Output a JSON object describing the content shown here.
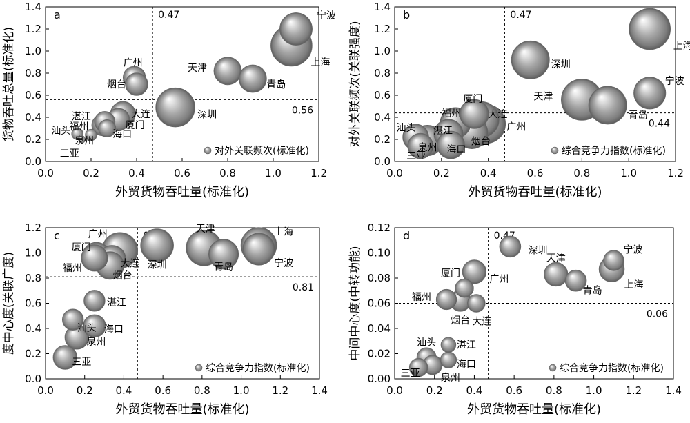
{
  "chart_data": [
    {
      "type": "scatter",
      "panel_label": "a",
      "xlabel": "外贸货物吞吐量(标准化)",
      "ylabel": "货物吞吐总量(标准化)",
      "legend": "对外关联频次(标准化)",
      "legend_position": "bottom-right",
      "xlim": [
        0,
        1.2
      ],
      "ylim": [
        0,
        1.4
      ],
      "xticks": [
        "0.0",
        "0.2",
        "0.4",
        "0.6",
        "0.8",
        "1.0",
        "1.2"
      ],
      "yticks": [
        "0.0",
        "0.2",
        "0.4",
        "0.6",
        "0.8",
        "1.0",
        "1.2",
        "1.4"
      ],
      "vline": {
        "value": 0.47,
        "label": "0.47"
      },
      "hline": {
        "value": 0.56,
        "label": "0.56"
      },
      "points": [
        {
          "name": "宁波",
          "x": 1.1,
          "y": 1.2,
          "size": 0.62
        },
        {
          "name": "上海",
          "x": 1.08,
          "y": 1.05,
          "size": 1.0
        },
        {
          "name": "天津",
          "x": 0.8,
          "y": 0.82,
          "size": 0.45
        },
        {
          "name": "青岛",
          "x": 0.91,
          "y": 0.75,
          "size": 0.45
        },
        {
          "name": "深圳",
          "x": 0.57,
          "y": 0.49,
          "size": 0.9
        },
        {
          "name": "广州",
          "x": 0.39,
          "y": 0.76,
          "size": 0.3
        },
        {
          "name": "烟台",
          "x": 0.4,
          "y": 0.7,
          "size": 0.3
        },
        {
          "name": "大连",
          "x": 0.34,
          "y": 0.43,
          "size": 0.37
        },
        {
          "name": "厦门",
          "x": 0.32,
          "y": 0.38,
          "size": 0.3
        },
        {
          "name": "湛江",
          "x": 0.26,
          "y": 0.36,
          "size": 0.25
        },
        {
          "name": "福州",
          "x": 0.25,
          "y": 0.33,
          "size": 0.27
        },
        {
          "name": "海口",
          "x": 0.27,
          "y": 0.3,
          "size": 0.18
        },
        {
          "name": "泉州",
          "x": 0.2,
          "y": 0.24,
          "size": 0.08
        },
        {
          "name": "汕头",
          "x": 0.14,
          "y": 0.25,
          "size": 0.08
        },
        {
          "name": "三亚",
          "x": 0.16,
          "y": 0.2,
          "size": 0.03
        }
      ]
    },
    {
      "type": "scatter",
      "panel_label": "b",
      "xlabel": "外贸货物吞吐量(标准化)",
      "ylabel": "对外关联频次(关联强度)",
      "legend": "综合竞争力指数(标准化)",
      "legend_position": "bottom-right",
      "xlim": [
        0,
        1.2
      ],
      "ylim": [
        0,
        1.4
      ],
      "xticks": [
        "0.0",
        "0.2",
        "0.4",
        "0.6",
        "0.8",
        "1.0",
        "1.2"
      ],
      "yticks": [
        "0.0",
        "0.2",
        "0.4",
        "0.6",
        "0.8",
        "1.0",
        "1.2",
        "1.4"
      ],
      "vline": {
        "value": 0.47,
        "label": "0.47"
      },
      "hline": {
        "value": 0.44,
        "label": "0.44"
      },
      "points": [
        {
          "name": "上海",
          "x": 1.09,
          "y": 1.2,
          "size": 1.0
        },
        {
          "name": "深圳",
          "x": 0.58,
          "y": 0.92,
          "size": 0.85
        },
        {
          "name": "天津",
          "x": 0.8,
          "y": 0.56,
          "size": 1.0
        },
        {
          "name": "青岛",
          "x": 0.91,
          "y": 0.51,
          "size": 0.85
        },
        {
          "name": "宁波",
          "x": 1.09,
          "y": 0.62,
          "size": 0.6
        },
        {
          "name": "厦门",
          "x": 0.34,
          "y": 0.43,
          "size": 0.5
        },
        {
          "name": "大连",
          "x": 0.37,
          "y": 0.38,
          "size": 0.75
        },
        {
          "name": "广州",
          "x": 0.39,
          "y": 0.34,
          "size": 0.9
        },
        {
          "name": "福州",
          "x": 0.26,
          "y": 0.35,
          "size": 0.55
        },
        {
          "name": "烟台",
          "x": 0.33,
          "y": 0.26,
          "size": 0.6
        },
        {
          "name": "湛江",
          "x": 0.23,
          "y": 0.25,
          "size": 0.5
        },
        {
          "name": "海口",
          "x": 0.24,
          "y": 0.15,
          "size": 0.45
        },
        {
          "name": "泉州",
          "x": 0.14,
          "y": 0.19,
          "size": 0.55
        },
        {
          "name": "汕头",
          "x": 0.09,
          "y": 0.22,
          "size": 0.4
        },
        {
          "name": "三亚",
          "x": 0.11,
          "y": 0.14,
          "size": 0.38
        }
      ]
    },
    {
      "type": "scatter",
      "panel_label": "c",
      "xlabel": "外贸货物吞吐量(标准化)",
      "ylabel": "度中心度(关联广度)",
      "legend": "综合竞争力指数(标准化)",
      "legend_position": "bottom-right",
      "xlim": [
        0,
        1.4
      ],
      "ylim": [
        0,
        1.2
      ],
      "xticks": [
        "0.0",
        "0.2",
        "0.4",
        "0.6",
        "0.8",
        "1.0",
        "1.2",
        "1.4"
      ],
      "yticks": [
        "0.0",
        "0.2",
        "0.4",
        "0.6",
        "0.8",
        "1.0",
        "1.2"
      ],
      "vline": {
        "value": 0.47,
        "label": "0.47"
      },
      "hline": {
        "value": 0.81,
        "label": "0.81"
      },
      "points": [
        {
          "name": "广州",
          "x": 0.38,
          "y": 1.02,
          "size": 1.0
        },
        {
          "name": "深圳",
          "x": 0.57,
          "y": 1.06,
          "size": 0.85
        },
        {
          "name": "天津",
          "x": 0.81,
          "y": 1.04,
          "size": 1.0
        },
        {
          "name": "青岛",
          "x": 0.91,
          "y": 0.99,
          "size": 0.7
        },
        {
          "name": "上海",
          "x": 1.09,
          "y": 1.06,
          "size": 1.0
        },
        {
          "name": "宁波",
          "x": 1.09,
          "y": 1.03,
          "size": 0.8
        },
        {
          "name": "厦门",
          "x": 0.26,
          "y": 0.97,
          "size": 0.65
        },
        {
          "name": "福州",
          "x": 0.25,
          "y": 0.96,
          "size": 0.55
        },
        {
          "name": "大连",
          "x": 0.34,
          "y": 0.95,
          "size": 0.6
        },
        {
          "name": "烟台",
          "x": 0.33,
          "y": 0.9,
          "size": 0.6
        },
        {
          "name": "湛江",
          "x": 0.25,
          "y": 0.62,
          "size": 0.35
        },
        {
          "name": "汕头",
          "x": 0.14,
          "y": 0.47,
          "size": 0.35
        },
        {
          "name": "海口",
          "x": 0.25,
          "y": 0.42,
          "size": 0.4
        },
        {
          "name": "泉州",
          "x": 0.16,
          "y": 0.33,
          "size": 0.45
        },
        {
          "name": "三亚",
          "x": 0.1,
          "y": 0.17,
          "size": 0.45
        }
      ]
    },
    {
      "type": "scatter",
      "panel_label": "d",
      "xlabel": "外贸货物吞吐量(标准化)",
      "ylabel": "中间中心度(中转功能)",
      "legend": "综合竞争力指数(标准化)",
      "legend_position": "bottom-right",
      "xlim": [
        0,
        1.4
      ],
      "ylim": [
        0,
        0.12
      ],
      "xticks": [
        "0.0",
        "0.2",
        "0.4",
        "0.6",
        "0.8",
        "1.0",
        "1.2",
        "1.4"
      ],
      "yticks": [
        "0.00",
        "0.02",
        "0.04",
        "0.06",
        "0.08",
        "0.10",
        "0.12"
      ],
      "vline": {
        "value": 0.47,
        "label": "0.47"
      },
      "hline": {
        "value": 0.06,
        "label": "0.06"
      },
      "points": [
        {
          "name": "深圳",
          "x": 0.58,
          "y": 0.105,
          "size": 0.6
        },
        {
          "name": "广州",
          "x": 0.4,
          "y": 0.085,
          "size": 0.75
        },
        {
          "name": "天津",
          "x": 0.81,
          "y": 0.083,
          "size": 0.75
        },
        {
          "name": "青岛",
          "x": 0.91,
          "y": 0.078,
          "size": 0.6
        },
        {
          "name": "上海",
          "x": 1.09,
          "y": 0.087,
          "size": 0.85
        },
        {
          "name": "宁波",
          "x": 1.1,
          "y": 0.094,
          "size": 0.55
        },
        {
          "name": "厦门",
          "x": 0.35,
          "y": 0.072,
          "size": 0.45
        },
        {
          "name": "福州",
          "x": 0.26,
          "y": 0.063,
          "size": 0.55
        },
        {
          "name": "烟台",
          "x": 0.33,
          "y": 0.062,
          "size": 0.6
        },
        {
          "name": "大连",
          "x": 0.41,
          "y": 0.06,
          "size": 0.42
        },
        {
          "name": "汕头",
          "x": 0.16,
          "y": 0.017,
          "size": 0.5
        },
        {
          "name": "湛江",
          "x": 0.27,
          "y": 0.027,
          "size": 0.3
        },
        {
          "name": "海口",
          "x": 0.27,
          "y": 0.015,
          "size": 0.35
        },
        {
          "name": "泉州",
          "x": 0.19,
          "y": 0.011,
          "size": 0.5
        },
        {
          "name": "三亚",
          "x": 0.12,
          "y": 0.009,
          "size": 0.45
        }
      ]
    }
  ]
}
